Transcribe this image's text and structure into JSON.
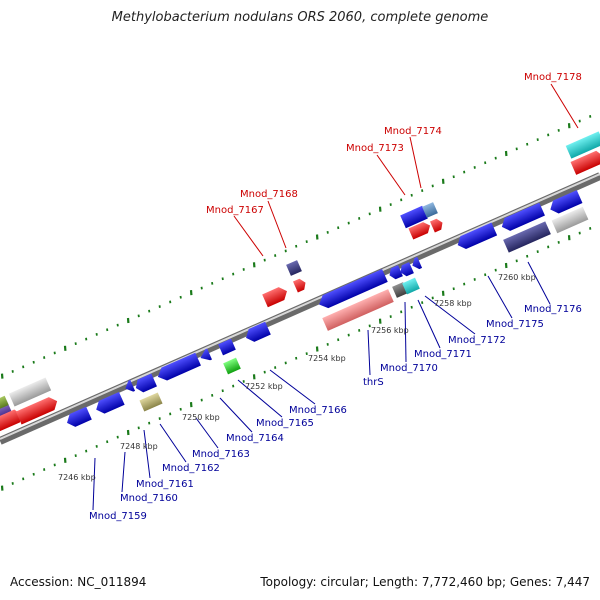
{
  "title": "Methylobacterium nodulans ORS 2060, complete genome",
  "footer": {
    "accession": "Accession: NC_011894",
    "summary": "Topology: circular; Length: 7,772,460 bp; Genes: 7,447"
  },
  "scale_labels": [
    "7246 kbp",
    "7248 kbp",
    "7250 kbp",
    "7252 kbp",
    "7254 kbp",
    "7256 kbp",
    "7258 kbp",
    "7260 kbp"
  ],
  "forward_gene_labels": [
    "Mnod_7167",
    "Mnod_7168",
    "Mnod_7173",
    "Mnod_7174",
    "Mnod_7178"
  ],
  "reverse_gene_labels": [
    "Mnod_7159",
    "Mnod_7160",
    "Mnod_7161",
    "Mnod_7162",
    "Mnod_7163",
    "Mnod_7164",
    "Mnod_7165",
    "Mnod_7166",
    "thrS",
    "Mnod_7170",
    "Mnod_7171",
    "Mnod_7172",
    "Mnod_7175",
    "Mnod_7176"
  ],
  "colors": {
    "backbone": "#8c8c8c",
    "tick": "#1a7a1a",
    "forward_label": "#cc0000",
    "reverse_label": "#000099",
    "gene_red": "#ff1010",
    "gene_blue": "#1010e0",
    "gene_navy": "#3a3a80",
    "gene_grey": "#c8c8c8",
    "gene_cyan": "#20d0d0",
    "gene_pink": "#f08080",
    "gene_green": "#30c030",
    "gene_olive": "#b8b070",
    "gene_steel": "#5080b0"
  }
}
